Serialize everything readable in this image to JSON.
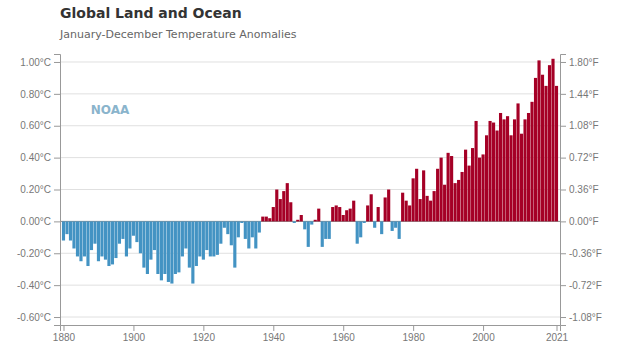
{
  "chart_data": {
    "type": "bar",
    "title": "Global Land and Ocean",
    "subtitle": "January-December Temperature Anomalies",
    "annotations": [
      "NOAA"
    ],
    "x": [
      1880,
      1881,
      1882,
      1883,
      1884,
      1885,
      1886,
      1887,
      1888,
      1889,
      1890,
      1891,
      1892,
      1893,
      1894,
      1895,
      1896,
      1897,
      1898,
      1899,
      1900,
      1901,
      1902,
      1903,
      1904,
      1905,
      1906,
      1907,
      1908,
      1909,
      1910,
      1911,
      1912,
      1913,
      1914,
      1915,
      1916,
      1917,
      1918,
      1919,
      1920,
      1921,
      1922,
      1923,
      1924,
      1925,
      1926,
      1927,
      1928,
      1929,
      1930,
      1931,
      1932,
      1933,
      1934,
      1935,
      1936,
      1937,
      1938,
      1939,
      1940,
      1941,
      1942,
      1943,
      1944,
      1945,
      1946,
      1947,
      1948,
      1949,
      1950,
      1951,
      1952,
      1953,
      1954,
      1955,
      1956,
      1957,
      1958,
      1959,
      1960,
      1961,
      1962,
      1963,
      1964,
      1965,
      1966,
      1967,
      1968,
      1969,
      1970,
      1971,
      1972,
      1973,
      1974,
      1975,
      1976,
      1977,
      1978,
      1979,
      1980,
      1981,
      1982,
      1983,
      1984,
      1985,
      1986,
      1987,
      1988,
      1989,
      1990,
      1991,
      1992,
      1993,
      1994,
      1995,
      1996,
      1997,
      1998,
      1999,
      2000,
      2001,
      2002,
      2003,
      2004,
      2005,
      2006,
      2007,
      2008,
      2009,
      2010,
      2011,
      2012,
      2013,
      2014,
      2015,
      2016,
      2017,
      2018,
      2019,
      2020,
      2021
    ],
    "values": [
      -0.12,
      -0.08,
      -0.12,
      -0.17,
      -0.22,
      -0.25,
      -0.22,
      -0.28,
      -0.18,
      -0.14,
      -0.25,
      -0.22,
      -0.24,
      -0.28,
      -0.27,
      -0.23,
      -0.14,
      -0.11,
      -0.22,
      -0.17,
      -0.09,
      -0.13,
      -0.2,
      -0.29,
      -0.33,
      -0.24,
      -0.18,
      -0.33,
      -0.37,
      -0.33,
      -0.38,
      -0.39,
      -0.33,
      -0.32,
      -0.22,
      -0.17,
      -0.29,
      -0.39,
      -0.28,
      -0.22,
      -0.24,
      -0.18,
      -0.22,
      -0.22,
      -0.21,
      -0.14,
      -0.04,
      -0.08,
      -0.15,
      -0.29,
      -0.1,
      -0.01,
      -0.11,
      -0.17,
      -0.1,
      -0.17,
      -0.07,
      0.03,
      0.03,
      0.02,
      0.09,
      0.2,
      0.14,
      0.19,
      0.24,
      0.12,
      -0.01,
      0.01,
      0.04,
      -0.05,
      -0.16,
      -0.02,
      0.01,
      0.08,
      -0.16,
      -0.11,
      -0.11,
      0.09,
      0.1,
      0.09,
      0.04,
      0.07,
      0.08,
      0.13,
      -0.14,
      -0.1,
      -0.01,
      0.1,
      0.17,
      -0.04,
      0.09,
      -0.08,
      0.15,
      0.2,
      -0.06,
      -0.04,
      -0.11,
      0.18,
      0.13,
      0.1,
      0.27,
      0.33,
      0.14,
      0.32,
      0.16,
      0.13,
      0.19,
      0.33,
      0.4,
      0.23,
      0.43,
      0.41,
      0.24,
      0.26,
      0.31,
      0.45,
      0.35,
      0.46,
      0.63,
      0.4,
      0.42,
      0.54,
      0.63,
      0.62,
      0.57,
      0.68,
      0.64,
      0.66,
      0.54,
      0.64,
      0.74,
      0.55,
      0.64,
      0.68,
      0.75,
      0.9,
      1.01,
      0.92,
      0.85,
      0.98,
      1.02,
      0.85
    ],
    "colors": [
      "#4393c3",
      "#4393c3",
      "#4393c3",
      "#4393c3",
      "#4393c3",
      "#4393c3",
      "#4393c3",
      "#4393c3",
      "#4393c3",
      "#4393c3",
      "#4393c3",
      "#4393c3",
      "#4393c3",
      "#4393c3",
      "#4393c3",
      "#4393c3",
      "#4393c3",
      "#4393c3",
      "#4393c3",
      "#4393c3",
      "#4393c3",
      "#4393c3",
      "#4393c3",
      "#4393c3",
      "#4393c3",
      "#4393c3",
      "#4393c3",
      "#4393c3",
      "#4393c3",
      "#4393c3",
      "#4393c3",
      "#4393c3",
      "#4393c3",
      "#4393c3",
      "#4393c3",
      "#4393c3",
      "#4393c3",
      "#4393c3",
      "#4393c3",
      "#4393c3",
      "#4393c3",
      "#4393c3",
      "#4393c3",
      "#4393c3",
      "#4393c3",
      "#4393c3",
      "#4393c3",
      "#4393c3",
      "#4393c3",
      "#4393c3",
      "#4393c3",
      "#4393c3",
      "#4393c3",
      "#4393c3",
      "#4393c3",
      "#4393c3",
      "#4393c3",
      "#a50026",
      "#a50026",
      "#a50026",
      "#a50026",
      "#a50026",
      "#a50026",
      "#a50026",
      "#a50026",
      "#a50026",
      "#4393c3",
      "#a50026",
      "#a50026",
      "#4393c3",
      "#4393c3",
      "#4393c3",
      "#a50026",
      "#a50026",
      "#4393c3",
      "#4393c3",
      "#4393c3",
      "#a50026",
      "#a50026",
      "#a50026",
      "#a50026",
      "#a50026",
      "#a50026",
      "#a50026",
      "#4393c3",
      "#4393c3",
      "#4393c3",
      "#a50026",
      "#a50026",
      "#4393c3",
      "#a50026",
      "#4393c3",
      "#a50026",
      "#a50026",
      "#4393c3",
      "#4393c3",
      "#4393c3",
      "#a50026",
      "#a50026",
      "#a50026",
      "#a50026",
      "#a50026",
      "#a50026",
      "#a50026",
      "#a50026",
      "#a50026",
      "#a50026",
      "#a50026",
      "#a50026",
      "#a50026",
      "#a50026",
      "#a50026",
      "#a50026",
      "#a50026",
      "#a50026",
      "#a50026",
      "#a50026",
      "#a50026",
      "#a50026",
      "#a50026",
      "#a50026",
      "#a50026",
      "#a50026",
      "#a50026",
      "#a50026",
      "#a50026",
      "#a50026",
      "#a50026",
      "#a50026",
      "#a50026",
      "#a50026",
      "#a50026",
      "#a50026",
      "#a50026",
      "#a50026",
      "#a50026",
      "#a50026",
      "#a50026",
      "#a50026",
      "#a50026",
      "#a50026",
      "#a50026"
    ],
    "xlim": [
      1879,
      2022
    ],
    "xticks": [
      1880,
      1900,
      1920,
      1940,
      1960,
      1980,
      2000,
      2021
    ],
    "ylim": [
      -0.65,
      1.05
    ],
    "yticks": [
      {
        "value": -0.6,
        "label": "-0.60°C"
      },
      {
        "value": -0.4,
        "label": "-0.40°C"
      },
      {
        "value": -0.2,
        "label": "-0.20°C"
      },
      {
        "value": 0.0,
        "label": "0.00°C"
      },
      {
        "value": 0.2,
        "label": "0.20°C"
      },
      {
        "value": 0.4,
        "label": "0.40°C"
      },
      {
        "value": 0.6,
        "label": "0.60°C"
      },
      {
        "value": 0.8,
        "label": "0.80°C"
      },
      {
        "value": 1.0,
        "label": "1.00°C"
      }
    ],
    "y2lim": [
      -1.17,
      1.89
    ],
    "y2ticks": [
      {
        "value": -1.08,
        "label": "-1.08°F"
      },
      {
        "value": -0.72,
        "label": "-0.72°F"
      },
      {
        "value": -0.36,
        "label": "-0.36°F"
      },
      {
        "value": 0.0,
        "label": "0.00°F"
      },
      {
        "value": 0.36,
        "label": "0.36°F"
      },
      {
        "value": 0.72,
        "label": "0.72°F"
      },
      {
        "value": 1.08,
        "label": "1.08°F"
      },
      {
        "value": 1.44,
        "label": "1.44°F"
      },
      {
        "value": 1.8,
        "label": "1.80°F"
      }
    ],
    "grid": true
  }
}
